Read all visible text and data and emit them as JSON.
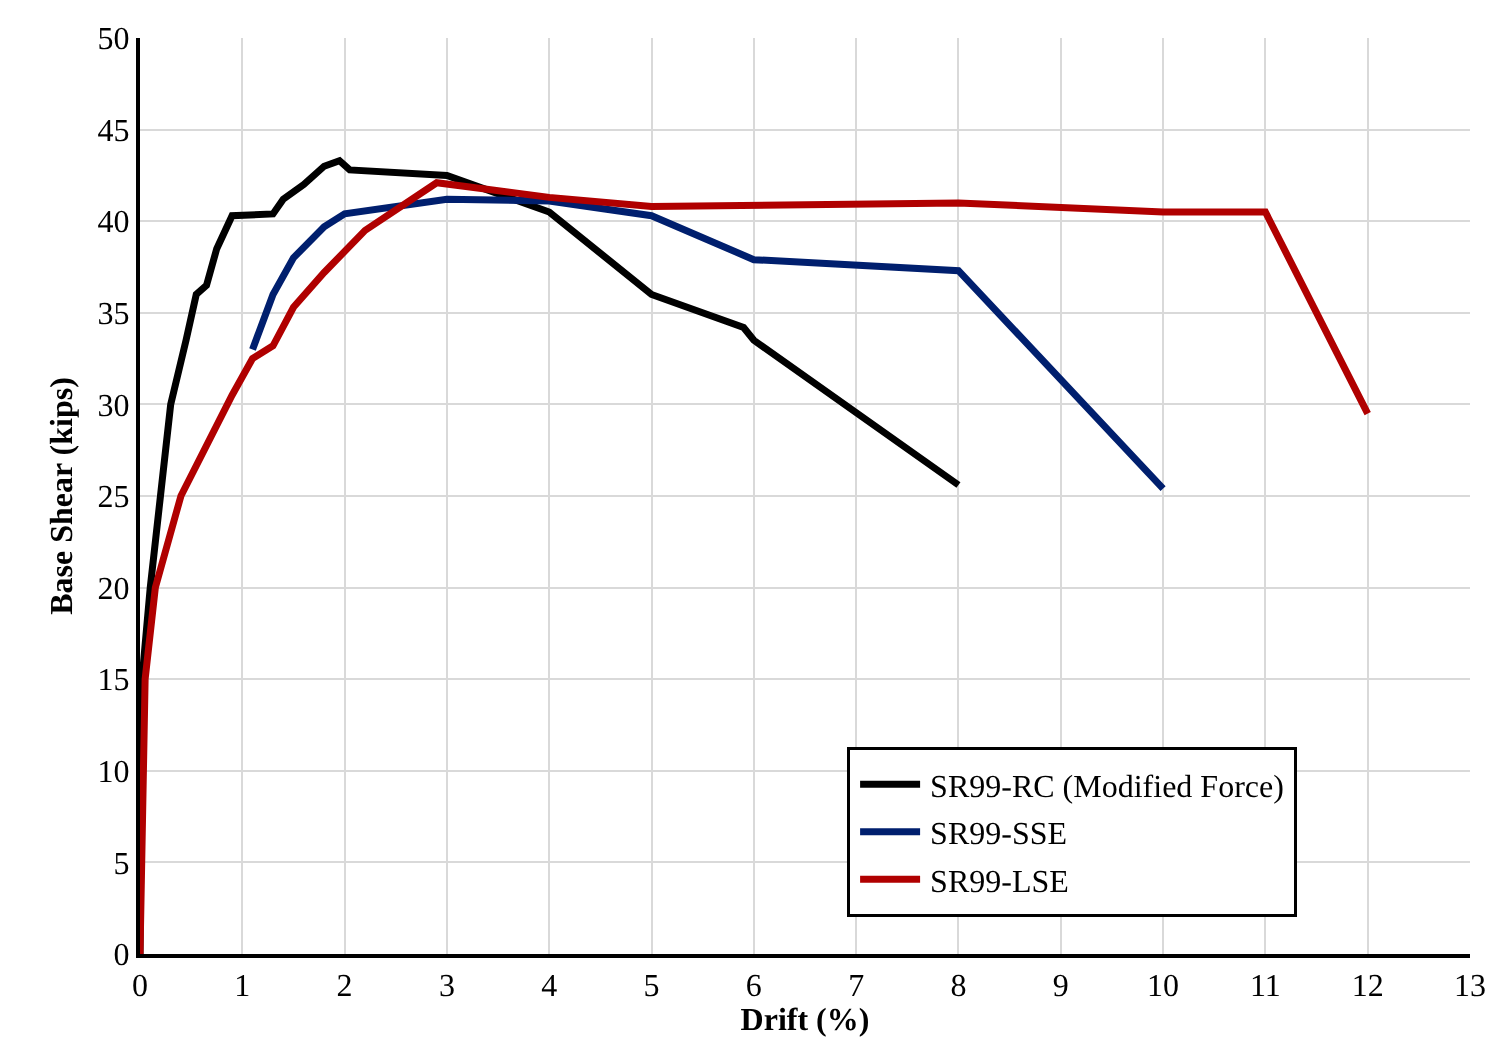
{
  "chart_data": {
    "type": "line",
    "xlabel": "Drift (%)",
    "ylabel": "Base Shear (kips)",
    "xlim": [
      0,
      13
    ],
    "ylim": [
      0,
      50
    ],
    "xticks": [
      0,
      1,
      2,
      3,
      4,
      5,
      6,
      7,
      8,
      9,
      10,
      11,
      12,
      13
    ],
    "yticks": [
      0,
      5,
      10,
      15,
      20,
      25,
      30,
      35,
      40,
      45,
      50
    ],
    "grid": true,
    "legend": "bottom right",
    "marker": "none",
    "line_style": "solid",
    "series": [
      {
        "name": "SR99-RC (Modified Force)",
        "color": "#000000",
        "x": [
          0,
          0.02,
          0.1,
          0.2,
          0.3,
          0.45,
          0.55,
          0.65,
          0.75,
          0.9,
          1.3,
          1.4,
          1.6,
          1.8,
          1.95,
          2.05,
          3,
          4,
          5,
          5.9,
          6,
          8
        ],
        "values": [
          0,
          15,
          20,
          25,
          30,
          33.5,
          36,
          36.5,
          38.5,
          40.3,
          40.4,
          41.2,
          42,
          43,
          43.3,
          42.8,
          42.5,
          40.5,
          36,
          34.2,
          33.5,
          25.6
        ]
      },
      {
        "name": "SR99-SSE",
        "color": "#001f6e",
        "x": [
          1.1,
          1.3,
          1.5,
          1.8,
          2,
          3,
          4,
          5,
          6,
          8,
          10
        ],
        "values": [
          33,
          36,
          38,
          39.7,
          40.4,
          41.2,
          41.1,
          40.3,
          37.9,
          37.3,
          25.4
        ]
      },
      {
        "name": "SR99-LSE",
        "color": "#b00000",
        "x": [
          0,
          0.05,
          0.15,
          0.4,
          0.9,
          1.1,
          1.3,
          1.5,
          1.8,
          2.2,
          2.9,
          4,
          5,
          8,
          10,
          11,
          12
        ],
        "values": [
          0,
          15,
          20,
          25,
          30.5,
          32.5,
          33.2,
          35.3,
          37.2,
          39.5,
          42.1,
          41.3,
          40.8,
          41,
          40.5,
          40.5,
          29.5
        ]
      }
    ]
  }
}
